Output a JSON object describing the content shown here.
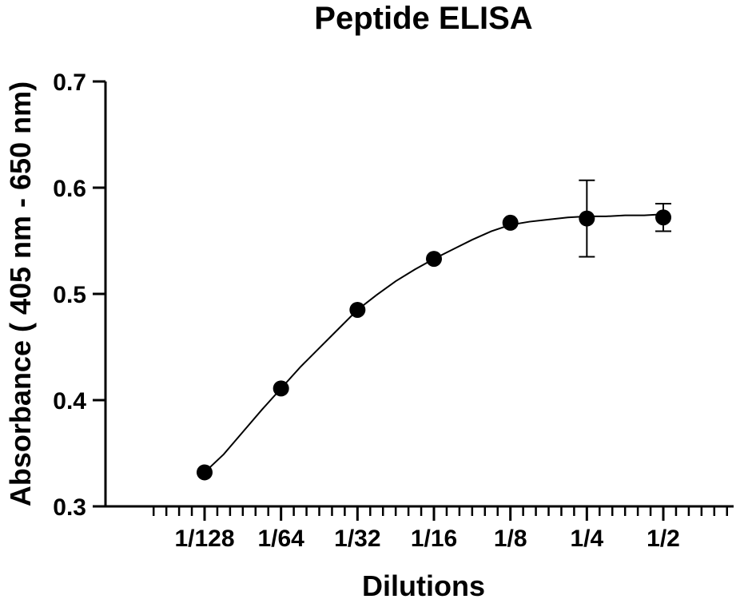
{
  "chart_data": {
    "type": "scatter",
    "title": "Peptide ELISA",
    "xlabel": "Dilutions",
    "ylabel": "Absorbance ( 405 nm - 650 nm)",
    "categories": [
      "1/128",
      "1/64",
      "1/32",
      "1/16",
      "1/8",
      "1/4",
      "1/2"
    ],
    "yticks": [
      "0.3",
      "0.4",
      "0.5",
      "0.6",
      "0.7"
    ],
    "ylim": [
      0.3,
      0.7
    ],
    "grid": false,
    "series": [
      {
        "values": [
          0.332,
          0.411,
          0.485,
          0.533,
          0.567,
          0.571,
          0.572
        ],
        "error": [
          0,
          0,
          0,
          0,
          0,
          0.036,
          0.013
        ]
      }
    ],
    "fit_curve": {
      "type": "sigmoidal",
      "x": [
        1,
        1.25,
        1.5,
        1.75,
        2,
        2.25,
        2.5,
        2.75,
        3,
        3.25,
        3.5,
        3.75,
        4,
        4.25,
        4.5,
        4.75,
        5,
        5.25,
        5.5,
        5.75,
        6,
        6.25,
        6.5,
        6.75,
        7
      ],
      "y": [
        0.332,
        0.349,
        0.37,
        0.391,
        0.411,
        0.431,
        0.449,
        0.467,
        0.485,
        0.499,
        0.512,
        0.523,
        0.533,
        0.542,
        0.551,
        0.559,
        0.565,
        0.568,
        0.57,
        0.572,
        0.573,
        0.573,
        0.574,
        0.574,
        0.575
      ]
    },
    "marker_color": "#000000",
    "line_color": "#000000"
  }
}
